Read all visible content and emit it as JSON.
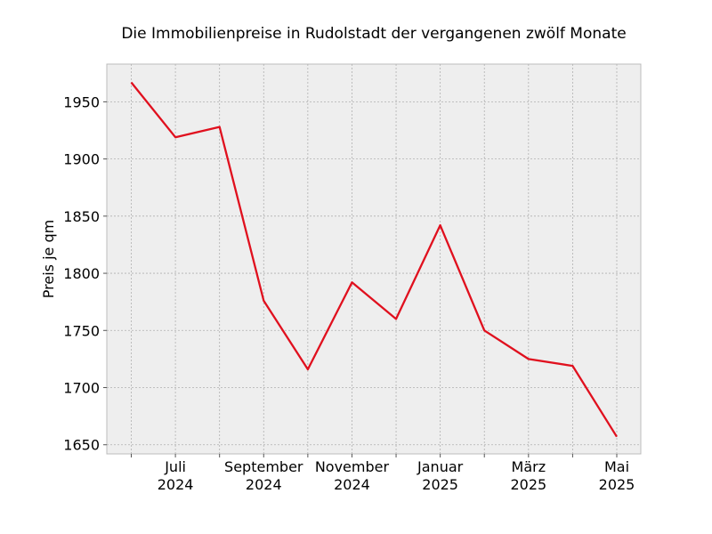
{
  "chart_data": {
    "type": "line",
    "title": "Die Immobilienpreise in Rudolstadt der vergangenen zwölf Monate",
    "xlabel": "",
    "ylabel": "Preis je qm",
    "x": [
      "2024-06",
      "2024-07",
      "2024-08",
      "2024-09",
      "2024-10",
      "2024-11",
      "2024-12",
      "2025-01",
      "2025-02",
      "2025-03",
      "2025-04",
      "2025-05"
    ],
    "series": [
      {
        "values": [
          1967,
          1919,
          1928,
          1776,
          1716,
          1792,
          1760,
          1842,
          1750,
          1725,
          1719,
          1657
        ]
      }
    ],
    "ylim": [
      1642,
      1983
    ],
    "y_ticks": [
      "1650",
      "1700",
      "1750",
      "1800",
      "1850",
      "1900",
      "1950"
    ],
    "x_tick_labels": [
      {
        "month": "Juli",
        "year": "2024"
      },
      {
        "month": "September",
        "year": "2024"
      },
      {
        "month": "November",
        "year": "2024"
      },
      {
        "month": "Januar",
        "year": "2025"
      },
      {
        "month": "März",
        "year": "2025"
      },
      {
        "month": "Mai",
        "year": "2025"
      }
    ],
    "line_color": "#e0101e",
    "plot_background": "#eeeeee",
    "grid": true
  }
}
